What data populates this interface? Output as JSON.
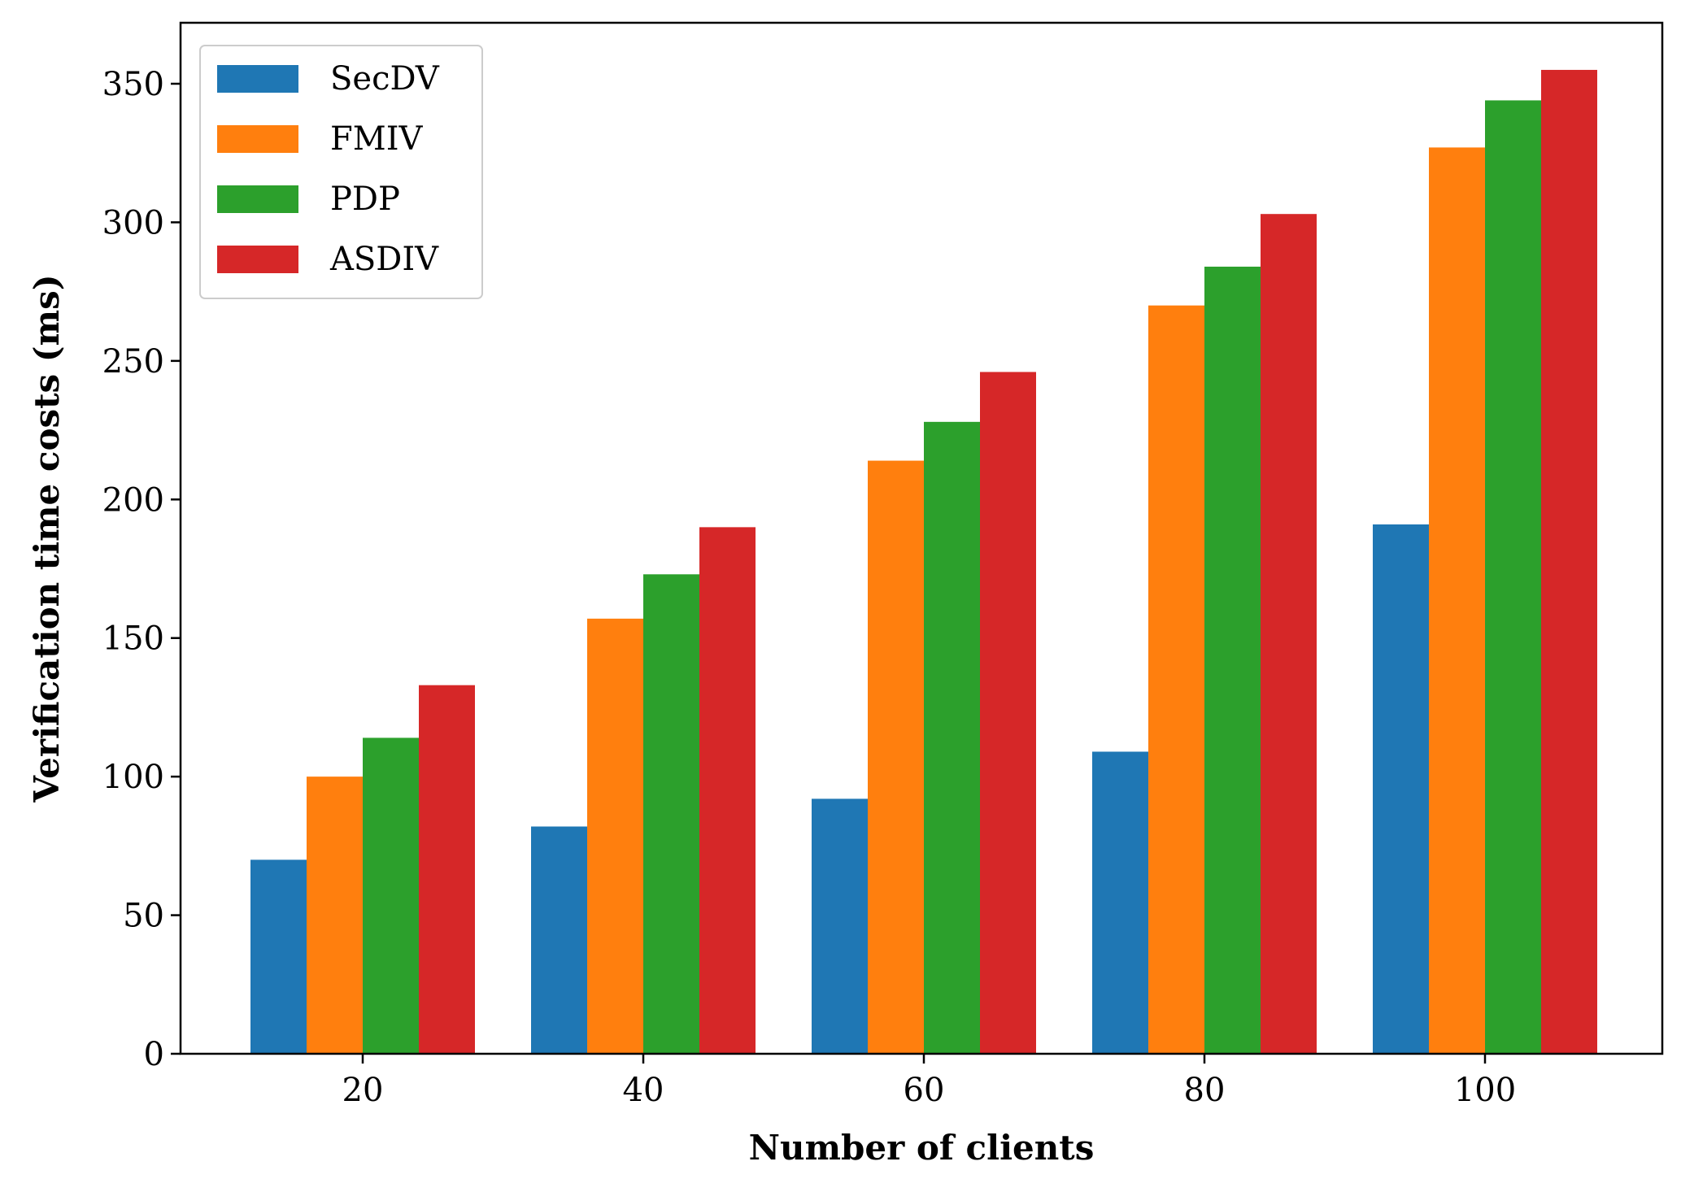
{
  "chart_data": {
    "type": "bar",
    "categories": [
      "20",
      "40",
      "60",
      "80",
      "100"
    ],
    "series": [
      {
        "name": "SecDV",
        "color": "#1f77b4",
        "values": [
          70,
          82,
          92,
          109,
          191
        ]
      },
      {
        "name": "FMIV",
        "color": "#ff7f0e",
        "values": [
          100,
          157,
          214,
          270,
          327
        ]
      },
      {
        "name": "PDP",
        "color": "#2ca02c",
        "values": [
          114,
          173,
          228,
          284,
          344
        ]
      },
      {
        "name": "ASDIV",
        "color": "#d62728",
        "values": [
          133,
          190,
          246,
          303,
          355
        ]
      }
    ],
    "xlabel": "Number of clients",
    "ylabel": "Verification time costs (ms)",
    "ylim": [
      0,
      372
    ],
    "yticks": [
      0,
      50,
      100,
      150,
      200,
      250,
      300,
      350
    ],
    "grid": false,
    "legend_position": "upper-left"
  }
}
